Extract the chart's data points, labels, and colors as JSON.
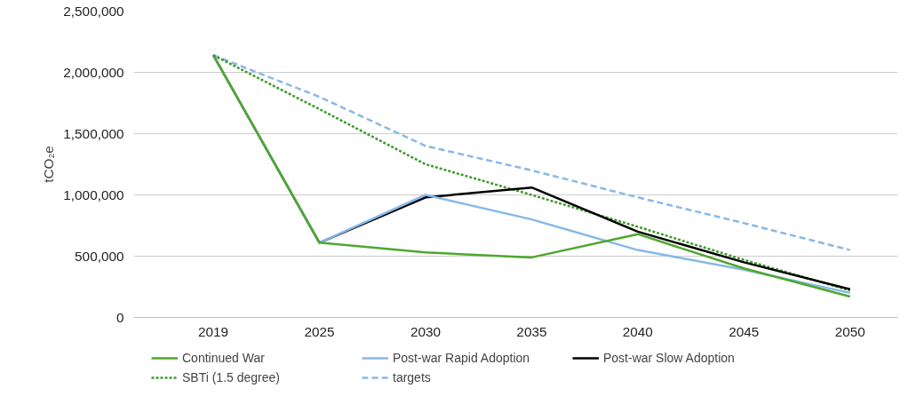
{
  "chart_data": {
    "type": "line",
    "ylabel": "tCO₂e",
    "categories": [
      "2019",
      "2025",
      "2030",
      "2035",
      "2040",
      "2045",
      "2050"
    ],
    "series": [
      {
        "name": "Continued War",
        "color": "#4ea72e",
        "line_style": "solid",
        "values": [
          2140000,
          610000,
          530000,
          490000,
          680000,
          400000,
          170000
        ]
      },
      {
        "name": "Post-war Rapid Adoption",
        "color": "#86b9e8",
        "line_style": "solid",
        "values": [
          2140000,
          610000,
          1000000,
          800000,
          550000,
          390000,
          200000
        ]
      },
      {
        "name": "Post-war Slow Adoption",
        "color": "#000000",
        "line_style": "solid",
        "values": [
          2140000,
          610000,
          980000,
          1060000,
          700000,
          450000,
          230000
        ]
      },
      {
        "name": "SBTi (1.5 degree)",
        "color": "#3e9a2c",
        "line_style": "dotted",
        "values": [
          2140000,
          1700000,
          1250000,
          1000000,
          740000,
          470000,
          220000
        ]
      },
      {
        "name": "targets",
        "color": "#8ab8e6",
        "line_style": "dashed",
        "values": [
          2140000,
          1800000,
          1400000,
          1200000,
          980000,
          770000,
          550000
        ]
      }
    ],
    "ylim": [
      0,
      2500000
    ],
    "yticks": [
      {
        "value": 0,
        "label": "0"
      },
      {
        "value": 500000,
        "label": "500,000"
      },
      {
        "value": 1000000,
        "label": "1,000,000"
      },
      {
        "value": 1500000,
        "label": "1,500,000"
      },
      {
        "value": 2000000,
        "label": "2,000,000"
      },
      {
        "value": 2500000,
        "label": "2,500,000"
      }
    ],
    "grid": "y",
    "legend": "bottom"
  }
}
